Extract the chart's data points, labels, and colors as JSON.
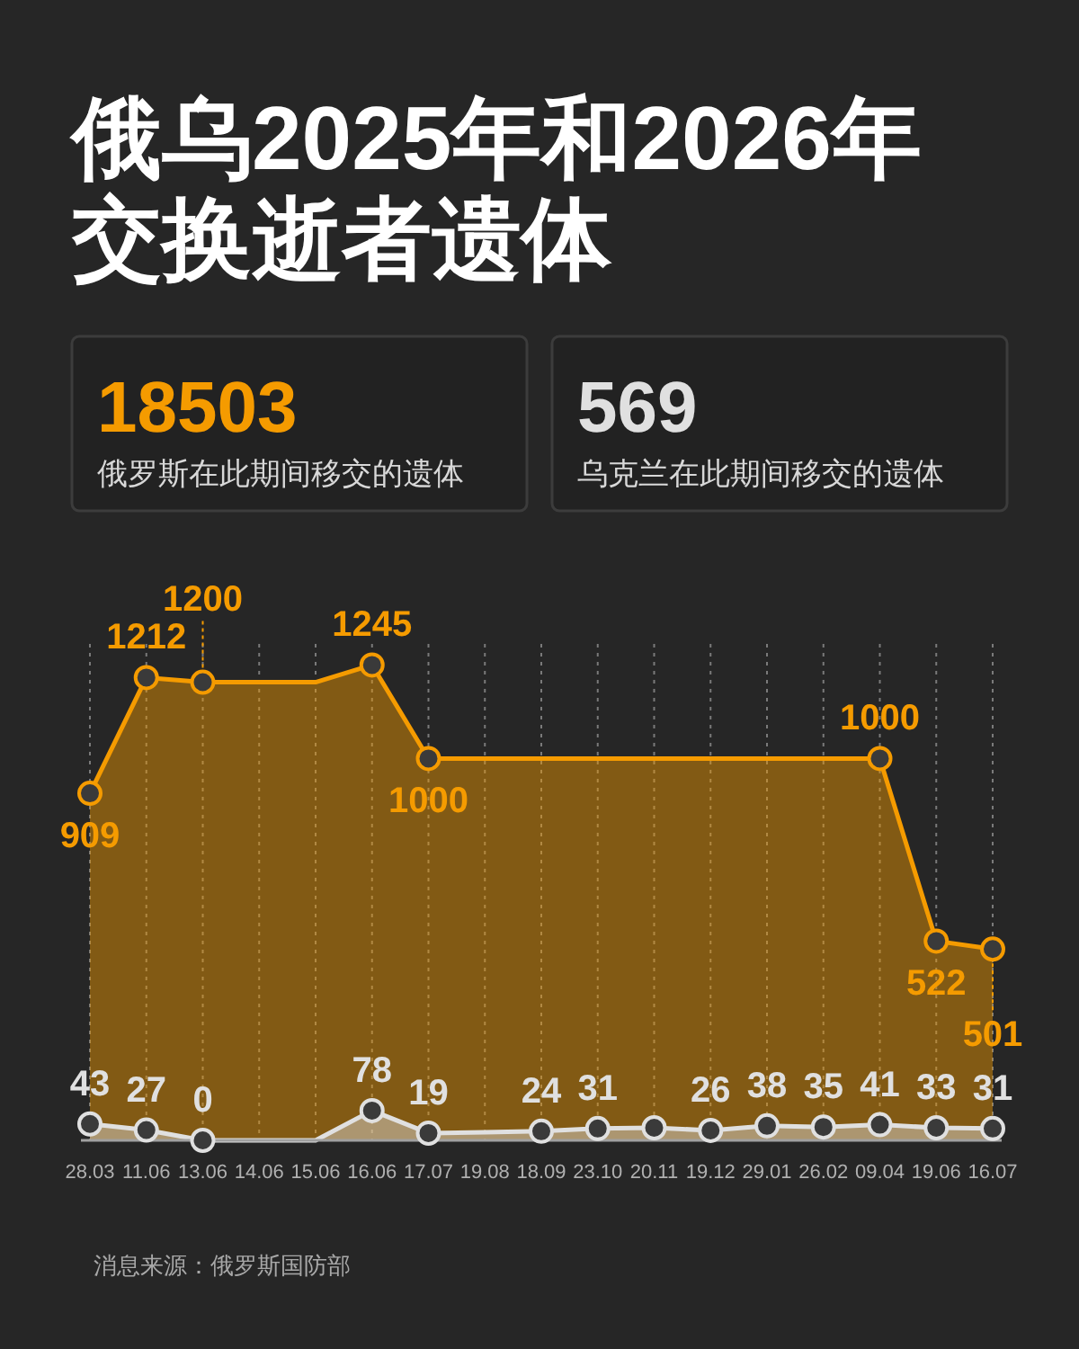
{
  "chart_data": [
    {
      "type": "other",
      "title": "俄乌2025年和2026年交换逝者遗体",
      "categories": [
        "俄罗斯在此期间移交的遗体",
        "乌克兰在此期间移交的遗体"
      ],
      "values": [
        18503,
        569
      ],
      "data_labels": true
    },
    {
      "type": "area",
      "categories": [
        "28.03",
        "11.06",
        "13.06",
        "14.06",
        "15.06",
        "16.06",
        "17.07",
        "19.08",
        "18.09",
        "23.10",
        "20.11",
        "19.12",
        "29.01",
        "26.02",
        "09.04",
        "19.06",
        "16.07"
      ],
      "grid": "x",
      "series": [
        {
          "type": "area",
          "color": "#f59b00",
          "values": [
            909,
            1212,
            1200,
            1200,
            1200,
            1245,
            1000,
            1000,
            1000,
            1000,
            1000,
            1000,
            1000,
            1000,
            1000,
            522,
            501
          ]
        },
        {
          "type": "area",
          "color": "#e0e0e0",
          "values": [
            43,
            27,
            0,
            0,
            0,
            78,
            19,
            21,
            24,
            31,
            33,
            26,
            38,
            35,
            41,
            33,
            31
          ]
        },
        {
          "type": "scatter",
          "color": "#f59b00",
          "marker": "circle",
          "x": [
            "28.03",
            "11.06",
            "13.06",
            "16.06",
            "17.07",
            "09.04",
            "19.06",
            "16.07"
          ],
          "values": [
            909,
            1212,
            1200,
            1245,
            1000,
            1000,
            522,
            501
          ],
          "value_labels": [
            "909",
            "1212",
            "1200",
            "1245",
            "1000",
            "1000",
            "522",
            "501"
          ]
        },
        {
          "type": "scatter",
          "color": "#e0e0e0",
          "marker": "circle",
          "x": [
            "28.03",
            "11.06",
            "13.06",
            "16.06",
            "17.07",
            "18.09",
            "23.10",
            "20.11",
            "19.12",
            "29.01",
            "26.02",
            "09.04",
            "19.06",
            "16.07"
          ],
          "values": [
            43,
            27,
            0,
            78,
            19,
            24,
            31,
            33,
            26,
            38,
            35,
            41,
            33,
            31
          ],
          "value_labels": [
            "43",
            "27",
            "0",
            "78",
            "19",
            "24",
            "31",
            null,
            "26",
            "38",
            "35",
            "41",
            "33",
            "31"
          ]
        }
      ],
      "annotations": [
        "消息来源：俄罗斯国防部"
      ]
    }
  ]
}
